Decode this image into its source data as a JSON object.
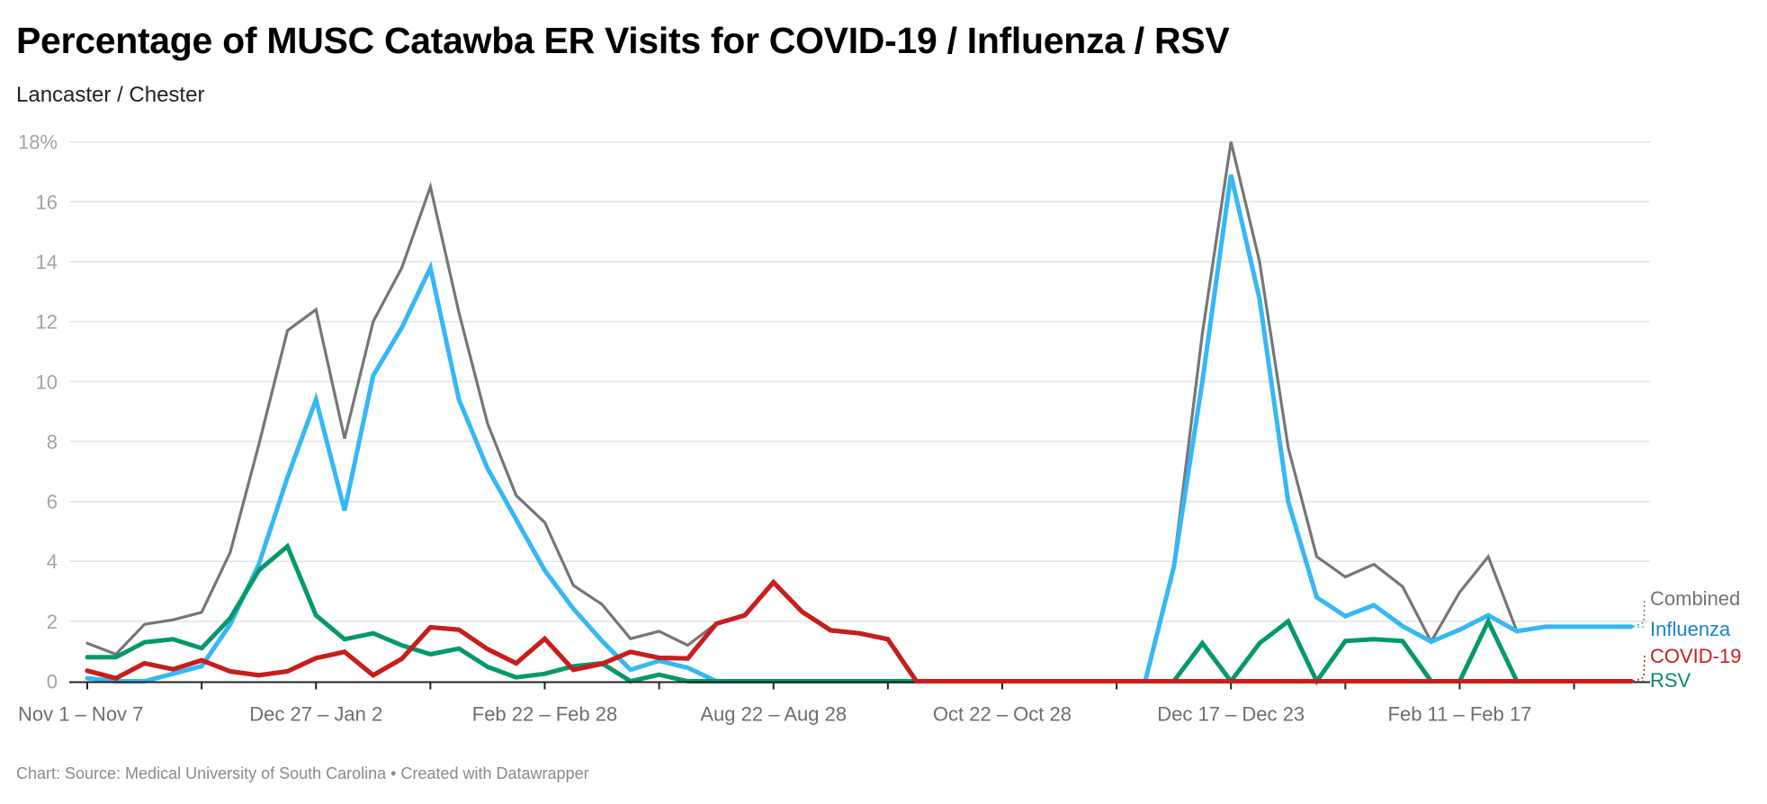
{
  "title": "Percentage of MUSC Catawba ER Visits for COVID-19 / Influenza / RSV",
  "subtitle": "Lancaster / Chester",
  "footer": "Chart: Source: Medical University of South Carolina • Created with Datawrapper",
  "chart_data": {
    "type": "line",
    "title": "Percentage of MUSC Catawba ER Visits for COVID-19 / Influenza / RSV",
    "subtitle": "Lancaster / Chester",
    "xlabel": "",
    "ylabel": "",
    "ylim": [
      0,
      18
    ],
    "y_ticks": [
      {
        "value": 0,
        "label": "0"
      },
      {
        "value": 2,
        "label": "2"
      },
      {
        "value": 4,
        "label": "4"
      },
      {
        "value": 6,
        "label": "6"
      },
      {
        "value": 8,
        "label": "8"
      },
      {
        "value": 10,
        "label": "10"
      },
      {
        "value": 12,
        "label": "12"
      },
      {
        "value": 14,
        "label": "14"
      },
      {
        "value": 16,
        "label": "16"
      },
      {
        "value": 18,
        "label": "18%"
      }
    ],
    "grid": true,
    "legend": "direct labels at line ends (right)",
    "categories": [
      "Nov 1 – Nov 7",
      "",
      "",
      "",
      "",
      "",
      "",
      "",
      "Dec 27 – Jan 2",
      "",
      "",
      "",
      "",
      "",
      "",
      "",
      "Feb 22 – Feb 28",
      "",
      "",
      "",
      "",
      "",
      "",
      "",
      "Aug 22 – Aug 28",
      "",
      "",
      "",
      "",
      "",
      "",
      "",
      "Oct 22 – Oct 28",
      "",
      "",
      "",
      "",
      "",
      "",
      "",
      "Dec 17 – Dec 23",
      "",
      "",
      "",
      "",
      "",
      "",
      "",
      "Feb 11 – Feb 17",
      "",
      "",
      "",
      "",
      "",
      ""
    ],
    "series": [
      {
        "name": "Combined",
        "color": "#767676",
        "label_color": "#737373",
        "values": [
          1.27,
          0.9,
          1.9,
          2.05,
          2.3,
          4.3,
          7.9,
          11.7,
          12.4,
          8.1,
          12.0,
          13.8,
          16.5,
          12.3,
          8.6,
          6.2,
          5.3,
          3.2,
          2.57,
          1.42,
          1.67,
          1.2,
          1.93,
          2.2,
          3.3,
          2.32,
          1.7,
          1.6,
          1.4,
          0,
          0,
          0,
          0,
          0,
          0,
          0,
          0,
          0,
          3.9,
          11.6,
          18.0,
          14.0,
          7.8,
          4.16,
          3.48,
          3.9,
          3.16,
          1.32,
          2.97,
          4.16,
          1.67,
          1.82,
          1.82,
          1.82,
          1.82
        ]
      },
      {
        "name": "Influenza",
        "color": "#35b8f5",
        "label_color": "#1a83c4",
        "values": [
          0.1,
          0,
          0,
          0.25,
          0.5,
          1.9,
          3.9,
          6.8,
          9.4,
          5.7,
          10.2,
          11.8,
          13.8,
          9.4,
          7.1,
          5.4,
          3.7,
          2.42,
          1.35,
          0.38,
          0.68,
          0.45,
          0,
          0,
          0,
          0,
          0,
          0,
          0,
          0,
          0,
          0,
          0,
          0,
          0,
          0,
          0,
          0,
          3.8,
          10.0,
          16.9,
          12.75,
          6.0,
          2.8,
          2.17,
          2.54,
          1.84,
          1.32,
          1.72,
          2.2,
          1.67,
          1.82,
          1.82,
          1.82,
          1.82
        ]
      },
      {
        "name": "RSV",
        "color": "#05996a",
        "label_color": "#0a8c60",
        "values": [
          0.8,
          0.8,
          1.3,
          1.4,
          1.1,
          2.1,
          3.7,
          4.5,
          2.2,
          1.4,
          1.6,
          1.2,
          0.9,
          1.09,
          0.48,
          0.13,
          0.25,
          0.5,
          0.6,
          0,
          0.22,
          0,
          0,
          0,
          0,
          0,
          0,
          0,
          0,
          0,
          0,
          0,
          0,
          0,
          0,
          0,
          0,
          0,
          0,
          1.27,
          0,
          1.27,
          2.0,
          0,
          1.34,
          1.4,
          1.34,
          0,
          0,
          2.0,
          0,
          0,
          0,
          0,
          0
        ]
      },
      {
        "name": "COVID-19",
        "color": "#c71e1d",
        "label_color": "#c71e1d",
        "values": [
          0.35,
          0.1,
          0.6,
          0.4,
          0.7,
          0.33,
          0.2,
          0.33,
          0.77,
          0.98,
          0.2,
          0.75,
          1.8,
          1.72,
          1.07,
          0.6,
          1.42,
          0.38,
          0.58,
          0.98,
          0.78,
          0.76,
          1.92,
          2.2,
          3.3,
          2.32,
          1.7,
          1.6,
          1.4,
          0,
          0,
          0,
          0,
          0,
          0,
          0,
          0,
          0,
          0,
          0,
          0,
          0,
          0,
          0,
          0,
          0,
          0,
          0,
          0,
          0,
          0,
          0,
          0,
          0,
          0
        ]
      }
    ]
  }
}
